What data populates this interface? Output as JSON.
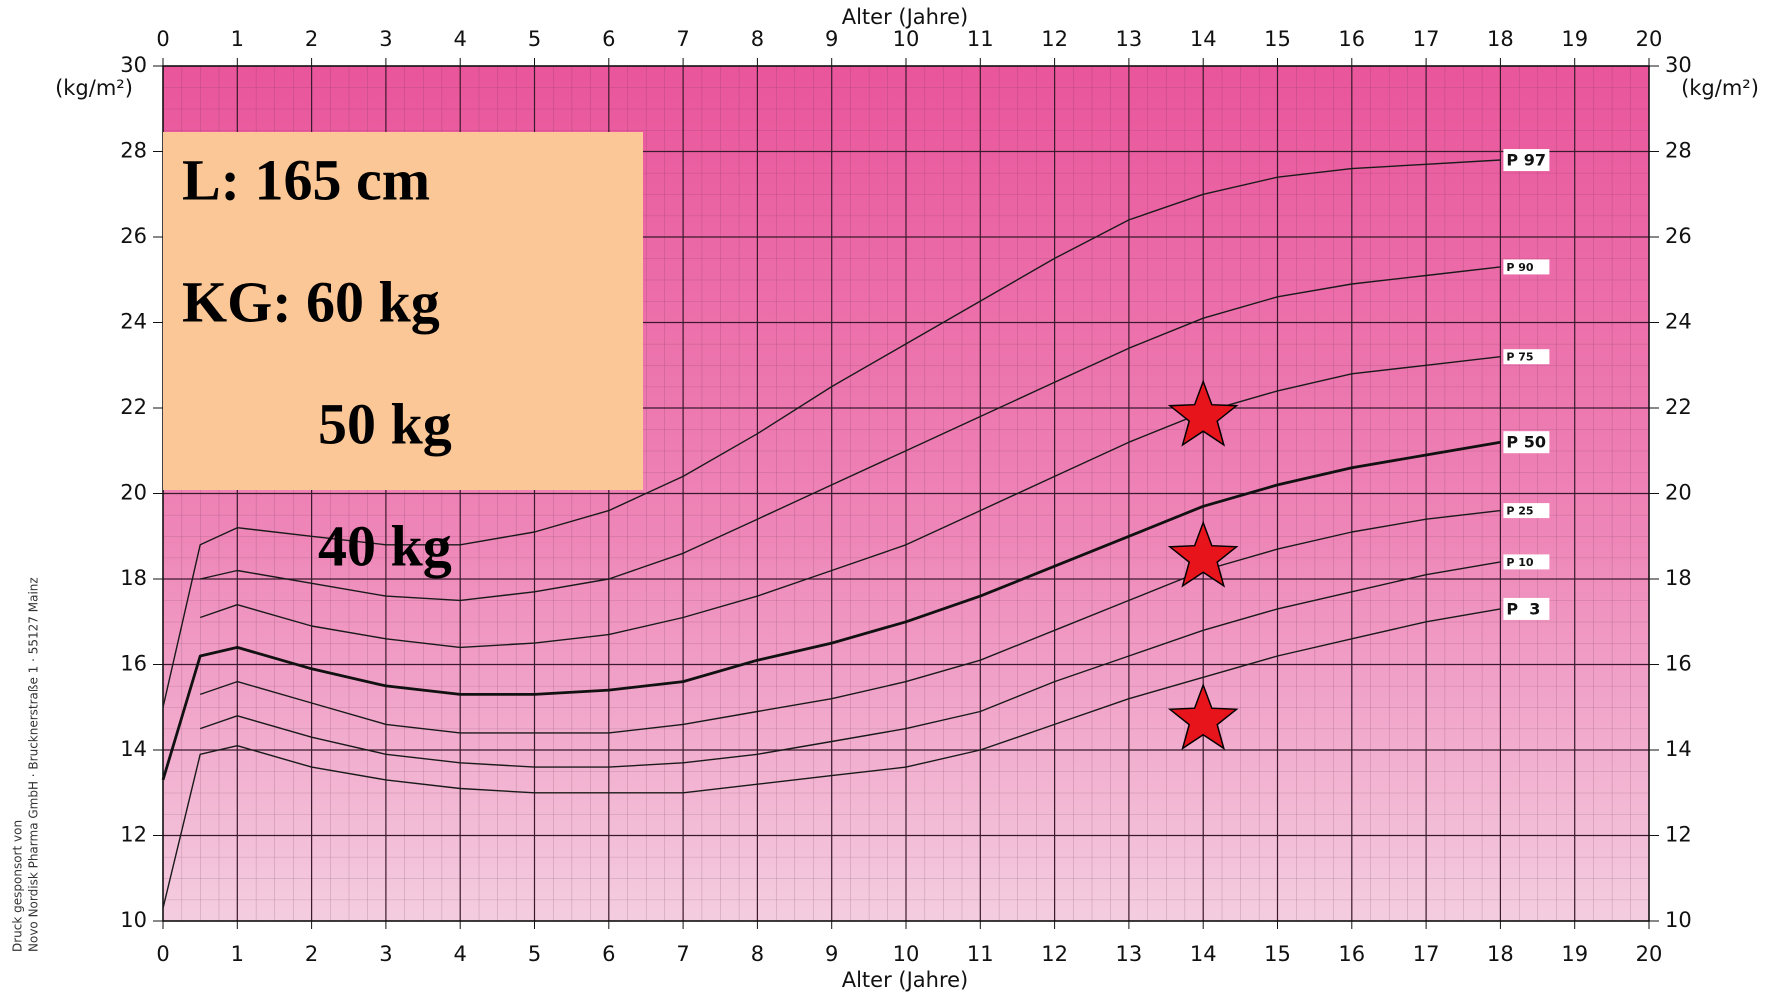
{
  "chart_data": {
    "type": "line",
    "x_label": "Alter (Jahre)",
    "y_label": "(kg/m²)",
    "xlim": [
      0,
      20
    ],
    "ylim": [
      10,
      30
    ],
    "xticks": [
      0,
      1,
      2,
      3,
      4,
      5,
      6,
      7,
      8,
      9,
      10,
      11,
      12,
      13,
      14,
      15,
      16,
      17,
      18,
      19,
      20
    ],
    "yticks": [
      10,
      12,
      14,
      16,
      18,
      20,
      22,
      24,
      26,
      28,
      30
    ],
    "grid": true,
    "x": [
      0,
      0.5,
      1,
      2,
      3,
      4,
      5,
      6,
      7,
      8,
      9,
      10,
      11,
      12,
      13,
      14,
      15,
      16,
      17,
      18
    ],
    "series": [
      {
        "name": "P 97",
        "color": "#1a1a1a",
        "line_width": 1.4,
        "values": [
          15.0,
          18.8,
          19.2,
          19.0,
          18.8,
          18.8,
          19.1,
          19.6,
          20.4,
          21.4,
          22.5,
          23.5,
          24.5,
          25.5,
          26.4,
          27.0,
          27.4,
          27.6,
          27.7,
          27.8
        ]
      },
      {
        "name": "P 90",
        "color": "#1a1a1a",
        "line_width": 1.4,
        "values": [
          null,
          18.0,
          18.2,
          17.9,
          17.6,
          17.5,
          17.7,
          18.0,
          18.6,
          19.4,
          20.2,
          21.0,
          21.8,
          22.6,
          23.4,
          24.1,
          24.6,
          24.9,
          25.1,
          25.3
        ]
      },
      {
        "name": "P 75",
        "color": "#1a1a1a",
        "line_width": 1.4,
        "values": [
          null,
          17.1,
          17.4,
          16.9,
          16.6,
          16.4,
          16.5,
          16.7,
          17.1,
          17.6,
          18.2,
          18.8,
          19.6,
          20.4,
          21.2,
          21.9,
          22.4,
          22.8,
          23.0,
          23.2
        ]
      },
      {
        "name": "P 50",
        "color": "#111111",
        "line_width": 2.8,
        "values": [
          13.3,
          16.2,
          16.4,
          15.9,
          15.5,
          15.3,
          15.3,
          15.4,
          15.6,
          16.1,
          16.5,
          17.0,
          17.6,
          18.3,
          19.0,
          19.7,
          20.2,
          20.6,
          20.9,
          21.2
        ]
      },
      {
        "name": "P 25",
        "color": "#1a1a1a",
        "line_width": 1.4,
        "values": [
          null,
          15.3,
          15.6,
          15.1,
          14.6,
          14.4,
          14.4,
          14.4,
          14.6,
          14.9,
          15.2,
          15.6,
          16.1,
          16.8,
          17.5,
          18.2,
          18.7,
          19.1,
          19.4,
          19.6
        ]
      },
      {
        "name": "P 10",
        "color": "#1a1a1a",
        "line_width": 1.4,
        "values": [
          null,
          14.5,
          14.8,
          14.3,
          13.9,
          13.7,
          13.6,
          13.6,
          13.7,
          13.9,
          14.2,
          14.5,
          14.9,
          15.6,
          16.2,
          16.8,
          17.3,
          17.7,
          18.1,
          18.4
        ]
      },
      {
        "name": "P  3",
        "color": "#1a1a1a",
        "line_width": 1.4,
        "values": [
          10.3,
          13.9,
          14.1,
          13.6,
          13.3,
          13.1,
          13.0,
          13.0,
          13.0,
          13.2,
          13.4,
          13.6,
          14.0,
          14.6,
          15.2,
          15.7,
          16.2,
          16.6,
          17.0,
          17.3
        ]
      }
    ],
    "markers": {
      "shape": "star",
      "color": "#e8141c",
      "x": [
        14,
        14,
        14
      ],
      "y": [
        21.8,
        18.5,
        14.7
      ]
    },
    "annotations": [
      "L:   165 cm",
      "KG:  60 kg",
      "50 kg",
      "40 kg"
    ],
    "sponsor": [
      "Druck gesponsort von",
      "Novo Nordisk Pharma GmbH · Brucknerstraße 1 · 55127 Mainz"
    ]
  }
}
